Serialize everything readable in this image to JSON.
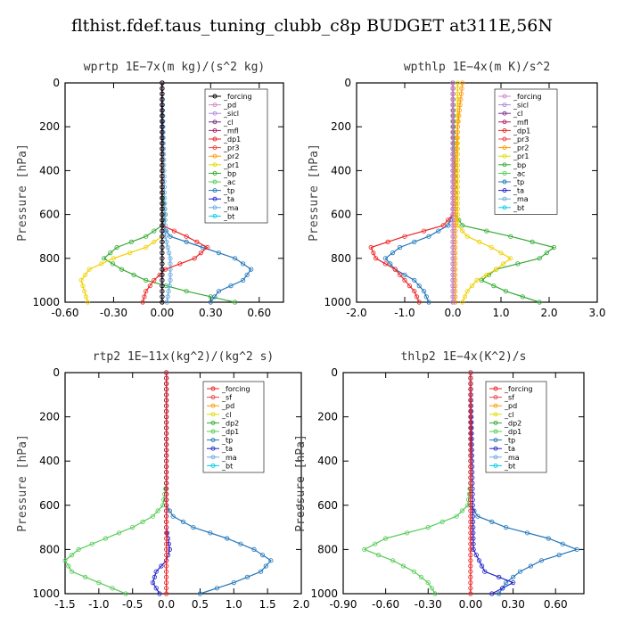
{
  "title": "flthist.fdef.taus_tuning_clubb_c8p  BUDGET at311E,56N",
  "chart_data": [
    {
      "type": "line",
      "panel_title": "wprtp   1E−7x(m kg)/(s^2 kg)",
      "ylabel": "Pressure [hPa]",
      "xlim": [
        -0.6,
        0.75
      ],
      "ylim": [
        1000,
        0
      ],
      "xticks": [
        -0.6,
        -0.3,
        0.0,
        0.3,
        0.6
      ],
      "xtick_labels": [
        "-0.60",
        "-0.30",
        "0.00",
        "0.30",
        "0.60"
      ],
      "yticks": [
        0,
        200,
        400,
        600,
        800,
        1000
      ],
      "legend_position": "top-right",
      "legend": [
        {
          "name": "_forcing",
          "color": "#000000"
        },
        {
          "name": "_pd",
          "color": "#cc88cc"
        },
        {
          "name": "_sicl",
          "color": "#aa88dd"
        },
        {
          "name": "_cl",
          "color": "#7a2a8a"
        },
        {
          "name": "_mfl",
          "color": "#aa2266"
        },
        {
          "name": "_dp1",
          "color": "#ee2222"
        },
        {
          "name": "_pr3",
          "color": "#ee4444"
        },
        {
          "name": "_pr2",
          "color": "#ff9900"
        },
        {
          "name": "_pr1",
          "color": "#dddd00"
        },
        {
          "name": "_bp",
          "color": "#33aa33"
        },
        {
          "name": "_ac",
          "color": "#55cc55"
        },
        {
          "name": "_tp",
          "color": "#2277bb"
        },
        {
          "name": "_ta",
          "color": "#2222cc"
        },
        {
          "name": "_ma",
          "color": "#66aadd"
        },
        {
          "name": "_bt",
          "color": "#00ccee"
        }
      ],
      "series": [
        {
          "name": "_bp",
          "color": "#33aa33",
          "p": [
            0,
            500,
            600,
            650,
            700,
            750,
            800,
            850,
            900,
            950,
            1000
          ],
          "x": [
            0,
            0,
            0.02,
            0,
            -0.1,
            -0.28,
            -0.36,
            -0.25,
            -0.1,
            0.15,
            0.45
          ]
        },
        {
          "name": "_pr1",
          "color": "#f0d000",
          "p": [
            0,
            700,
            750,
            800,
            850,
            900,
            950,
            1000
          ],
          "x": [
            0,
            0,
            -0.1,
            -0.3,
            -0.45,
            -0.5,
            -0.48,
            -0.46
          ]
        },
        {
          "name": "_tp",
          "color": "#2277bb",
          "p": [
            0,
            650,
            700,
            750,
            800,
            850,
            900,
            950,
            1000
          ],
          "x": [
            0,
            0,
            0.05,
            0.25,
            0.45,
            0.55,
            0.5,
            0.35,
            0.3
          ]
        },
        {
          "name": "_ma",
          "color": "#66aadd",
          "p": [
            0,
            700,
            800,
            900,
            1000
          ],
          "x": [
            0,
            0.02,
            0.05,
            0.05,
            0.03
          ]
        },
        {
          "name": "_dp1",
          "color": "#ee2222",
          "p": [
            0,
            650,
            700,
            750,
            800,
            850,
            900,
            950,
            1000
          ],
          "x": [
            0,
            0,
            0.15,
            0.28,
            0.2,
            0.02,
            -0.05,
            -0.1,
            -0.12
          ]
        },
        {
          "name": "_cl",
          "color": "#7a2a8a",
          "p": [
            0,
            200,
            400,
            600,
            800,
            1000
          ],
          "x": [
            0,
            0,
            0,
            0,
            0,
            0
          ]
        },
        {
          "name": "_forcing",
          "color": "#000000",
          "p": [
            0,
            200,
            400,
            600,
            800,
            1000
          ],
          "x": [
            0,
            0,
            0,
            0,
            0,
            0
          ]
        }
      ]
    },
    {
      "type": "line",
      "panel_title": "wpthlp   1E−4x(m K)/s^2",
      "ylabel": "Pressure [hPa]",
      "xlim": [
        -2.0,
        3.0
      ],
      "ylim": [
        1000,
        0
      ],
      "xticks": [
        -2.0,
        -1.0,
        0.0,
        1.0,
        2.0,
        3.0
      ],
      "xtick_labels": [
        "-2.0",
        "-1.0",
        "0.0",
        "1.0",
        "2.0",
        "3.0"
      ],
      "yticks": [
        0,
        200,
        400,
        600,
        800,
        1000
      ],
      "legend_position": "top-right",
      "legend": [
        {
          "name": "_forcing",
          "color": "#cc88cc"
        },
        {
          "name": "_sicl",
          "color": "#aa88dd"
        },
        {
          "name": "_cl",
          "color": "#7a2a8a"
        },
        {
          "name": "_mfl",
          "color": "#aa2266"
        },
        {
          "name": "_dp1",
          "color": "#ee2222"
        },
        {
          "name": "_pr3",
          "color": "#ee4444"
        },
        {
          "name": "_pr2",
          "color": "#ff9900"
        },
        {
          "name": "_pr1",
          "color": "#dddd00"
        },
        {
          "name": "_bp",
          "color": "#33aa33"
        },
        {
          "name": "_ac",
          "color": "#55cc55"
        },
        {
          "name": "_tp",
          "color": "#2277bb"
        },
        {
          "name": "_ta",
          "color": "#2222cc"
        },
        {
          "name": "_ma",
          "color": "#66aadd"
        },
        {
          "name": "_bt",
          "color": "#00ccee"
        }
      ],
      "series": [
        {
          "name": "_bp",
          "color": "#33aa33",
          "p": [
            0,
            600,
            650,
            700,
            750,
            800,
            850,
            900,
            950,
            1000
          ],
          "x": [
            0,
            0.05,
            0.2,
            1.2,
            2.1,
            1.8,
            0.9,
            0.6,
            1.1,
            1.8
          ]
        },
        {
          "name": "_pr1",
          "color": "#f0d000",
          "p": [
            0,
            650,
            700,
            750,
            800,
            850,
            900,
            950,
            1000
          ],
          "x": [
            0.1,
            0.1,
            0.3,
            0.8,
            1.2,
            0.9,
            0.5,
            0.3,
            0.2
          ]
        },
        {
          "name": "_tp",
          "color": "#2277bb",
          "p": [
            0,
            600,
            650,
            700,
            750,
            800,
            850,
            900,
            950,
            1000
          ],
          "x": [
            0,
            0,
            -0.1,
            -0.5,
            -1.1,
            -1.4,
            -1.2,
            -0.8,
            -0.6,
            -0.5
          ]
        },
        {
          "name": "_dp1",
          "color": "#ee2222",
          "p": [
            0,
            600,
            650,
            700,
            750,
            800,
            850,
            900,
            950,
            1000
          ],
          "x": [
            0,
            0,
            -0.2,
            -1.0,
            -1.7,
            -1.6,
            -1.2,
            -1.0,
            -0.8,
            -0.7
          ]
        },
        {
          "name": "_pr2",
          "color": "#ff9900",
          "p": [
            0,
            100,
            200,
            400,
            600,
            800,
            1000
          ],
          "x": [
            0.2,
            0.15,
            0.1,
            0.05,
            0.05,
            0.05,
            0.05
          ]
        },
        {
          "name": "_cl",
          "color": "#7a2a8a",
          "p": [
            0,
            200,
            400,
            600,
            800,
            1000
          ],
          "x": [
            0,
            0,
            0,
            0,
            0,
            0
          ]
        },
        {
          "name": "_forcing",
          "color": "#cc88cc",
          "p": [
            0,
            200,
            400,
            600,
            800,
            1000
          ],
          "x": [
            0,
            0,
            0,
            0,
            0,
            0
          ]
        }
      ]
    },
    {
      "type": "line",
      "panel_title": "rtp2   1E−11x(kg^2)/(kg^2 s)",
      "ylabel": "Pressure [hPa]",
      "xlim": [
        -1.5,
        2.0
      ],
      "ylim": [
        1000,
        0
      ],
      "xticks": [
        -1.5,
        -1.0,
        -0.5,
        0.0,
        0.5,
        1.0,
        1.5,
        2.0
      ],
      "xtick_labels": [
        "-1.5",
        "-1.0",
        "-0.5",
        "0.0",
        "0.5",
        "1.0",
        "1.5",
        "2.0"
      ],
      "yticks": [
        0,
        200,
        400,
        600,
        800,
        1000
      ],
      "legend_position": "top-right",
      "legend": [
        {
          "name": "_forcing",
          "color": "#ee2222"
        },
        {
          "name": "_sf",
          "color": "#ee4444"
        },
        {
          "name": "_pd",
          "color": "#ff9900"
        },
        {
          "name": "_cl",
          "color": "#dddd00"
        },
        {
          "name": "_dp2",
          "color": "#33aa33"
        },
        {
          "name": "_dp1",
          "color": "#55cc55"
        },
        {
          "name": "_tp",
          "color": "#2277bb"
        },
        {
          "name": "_ta",
          "color": "#2222cc"
        },
        {
          "name": "_ma",
          "color": "#66aadd"
        },
        {
          "name": "_bt",
          "color": "#00ccee"
        }
      ],
      "series": [
        {
          "name": "_dp1",
          "color": "#55cc55",
          "p": [
            0,
            500,
            600,
            650,
            700,
            750,
            800,
            850,
            900,
            950,
            1000
          ],
          "x": [
            0,
            0,
            -0.05,
            -0.2,
            -0.5,
            -0.9,
            -1.3,
            -1.5,
            -1.4,
            -1.0,
            -0.6
          ]
        },
        {
          "name": "_tp",
          "color": "#2277bb",
          "p": [
            0,
            600,
            650,
            700,
            750,
            800,
            850,
            900,
            950,
            1000
          ],
          "x": [
            0,
            0,
            0.1,
            0.4,
            0.9,
            1.3,
            1.55,
            1.4,
            1.0,
            0.5
          ]
        },
        {
          "name": "_ta",
          "color": "#2222cc",
          "p": [
            0,
            700,
            800,
            850,
            900,
            950,
            1000
          ],
          "x": [
            0,
            0,
            0.05,
            0,
            -0.15,
            -0.2,
            -0.1
          ]
        },
        {
          "name": "_forcing",
          "color": "#ee2222",
          "p": [
            0,
            200,
            400,
            600,
            800,
            1000
          ],
          "x": [
            0,
            0,
            0,
            0,
            0,
            0
          ]
        }
      ]
    },
    {
      "type": "line",
      "panel_title": "thlp2   1E−4x(K^2)/s",
      "ylabel": "Pressure [hPa]",
      "xlim": [
        -0.9,
        0.8
      ],
      "ylim": [
        1000,
        0
      ],
      "xticks": [
        -0.9,
        -0.6,
        -0.3,
        0.0,
        0.3,
        0.6
      ],
      "xtick_labels": [
        "-0.90",
        "-0.60",
        "-0.30",
        "0.00",
        "0.30",
        "0.60"
      ],
      "yticks": [
        0,
        200,
        400,
        600,
        800,
        1000
      ],
      "legend_position": "top-right",
      "legend": [
        {
          "name": "_forcing",
          "color": "#ee2222"
        },
        {
          "name": "_sf",
          "color": "#ee4444"
        },
        {
          "name": "_pd",
          "color": "#ff9900"
        },
        {
          "name": "_cl",
          "color": "#dddd00"
        },
        {
          "name": "_dp2",
          "color": "#33aa33"
        },
        {
          "name": "_dp1",
          "color": "#55cc55"
        },
        {
          "name": "_tp",
          "color": "#2277bb"
        },
        {
          "name": "_ta",
          "color": "#2222cc"
        },
        {
          "name": "_ma",
          "color": "#66aadd"
        },
        {
          "name": "_bt",
          "color": "#00ccee"
        }
      ],
      "series": [
        {
          "name": "_dp1",
          "color": "#55cc55",
          "p": [
            0,
            500,
            600,
            650,
            700,
            750,
            800,
            850,
            900,
            950,
            1000
          ],
          "x": [
            0,
            0,
            -0.02,
            -0.1,
            -0.3,
            -0.6,
            -0.75,
            -0.55,
            -0.4,
            -0.3,
            -0.25
          ]
        },
        {
          "name": "_tp",
          "color": "#2277bb",
          "p": [
            0,
            600,
            650,
            700,
            750,
            800,
            850,
            900,
            950,
            1000
          ],
          "x": [
            0,
            0,
            0.05,
            0.25,
            0.55,
            0.75,
            0.5,
            0.35,
            0.25,
            0.2
          ]
        },
        {
          "name": "_ta",
          "color": "#2222cc",
          "p": [
            0,
            800,
            900,
            950,
            1000
          ],
          "x": [
            0,
            0.02,
            0.1,
            0.3,
            0.15
          ]
        },
        {
          "name": "_forcing",
          "color": "#ee2222",
          "p": [
            0,
            200,
            400,
            600,
            800,
            1000
          ],
          "x": [
            0,
            0,
            0,
            0,
            0,
            0
          ]
        }
      ]
    }
  ]
}
